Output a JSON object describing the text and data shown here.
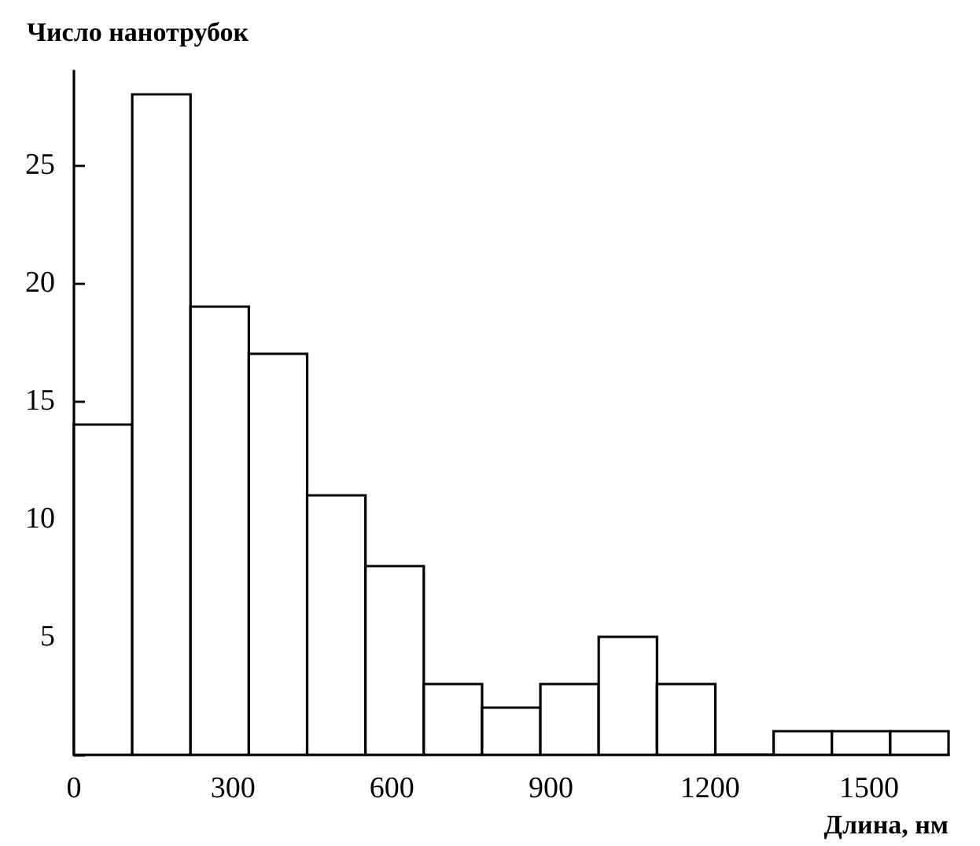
{
  "chart_data": {
    "type": "histogram",
    "xlabel": "Длина, нм",
    "ylabel": "Число нанотрубок",
    "bins": [
      0,
      110,
      220,
      330,
      440,
      550,
      660,
      770,
      880,
      990,
      1100,
      1210,
      1320,
      1430,
      1540,
      1650
    ],
    "values": [
      14,
      28,
      19,
      17,
      11,
      8,
      3,
      2,
      3,
      5,
      3,
      0,
      1,
      1,
      1
    ],
    "color": "#ffffff",
    "xlim": [
      0,
      1650
    ],
    "xticks": [
      0,
      300,
      600,
      900,
      1200,
      1500
    ],
    "ylim": [
      0,
      29
    ],
    "yticks": [
      {
        "value": 0,
        "label": null
      },
      5,
      10,
      15,
      20,
      25
    ],
    "grid": false
  }
}
